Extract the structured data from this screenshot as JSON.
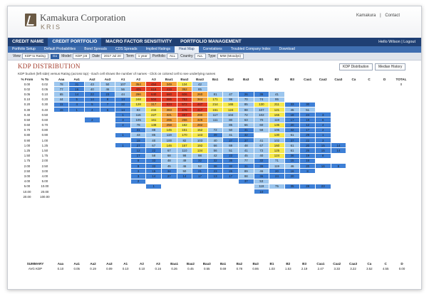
{
  "header": {
    "brand": "Kamakura Corporation",
    "brand_sub": "KRIS",
    "links": [
      "Kamakura",
      "|",
      "Contact"
    ]
  },
  "nav": {
    "items": [
      "CREDIT NAME",
      "CREDIT PORTFOLIO",
      "MACRO FACTOR SENSITIVITY",
      "PORTFOLIO MANAGEMENT"
    ],
    "active": 1,
    "user": "Hello Wilson  |  Logout"
  },
  "subnav": {
    "items": [
      "Portfolio Setup",
      "Default Probabilities",
      "Bond Spreads",
      "CDS Spreads",
      "Implied Ratings",
      "Heat Map",
      "Correlations",
      "Troubled Company Index",
      "Download"
    ],
    "active": 5
  },
  "filters": [
    {
      "label": "View",
      "value": "KDP to Rating"
    },
    {
      "go": "Go"
    },
    {
      "label": "Model",
      "value": "KDP jc6"
    },
    {
      "label": "Date",
      "value": "2017  Jul  20"
    },
    {
      "label": "Term",
      "value": "1 year"
    },
    {
      "label": "Portfolio",
      "value": "ALL"
    },
    {
      "label": "Country",
      "value": "ALL"
    },
    {
      "label": "Type",
      "value": "MIM (Moodys)"
    }
  ],
  "page": {
    "title": "KDP DISTRIBUTION",
    "tabs": [
      "KDP Distribution",
      "Median History"
    ],
    "description": "KDP bucket (left side) versus Rating (across top) - Each cell shows the number of names - Click on colored cell to see underlying names"
  },
  "table": {
    "headers": [
      "% From",
      "% To",
      "Aaa",
      "Aa1",
      "Aa2",
      "Aa3",
      "A1",
      "A2",
      "A3",
      "Baa1",
      "Baa2",
      "Baa3",
      "Ba1",
      "Ba2",
      "Ba3",
      "B1",
      "B2",
      "B3",
      "Caa1",
      "Caa2",
      "Caa3",
      "Ca",
      "C",
      "D",
      "TOTAL"
    ],
    "rows": [
      {
        "from": "0.00",
        "to": "0.02",
        "cells": [
          "78",
          "31",
          "43",
          "50",
          "107",
          "",
          "",
          "",
          "134",
          "42",
          "",
          "",
          "",
          "",
          "",
          "",
          "",
          "",
          "",
          "",
          "",
          "",
          "0",
          "3791"
        ]
      },
      {
        "from": "0.02",
        "to": "0.05",
        "cells": [
          "77",
          "16",
          "40",
          "46",
          "56",
          "",
          "",
          "",
          "",
          "",
          "",
          "",
          "",
          "",
          "",
          "",
          "",
          "",
          "",
          "",
          "",
          "",
          "",
          "5828"
        ]
      },
      {
        "from": "0.05",
        "to": "0.10",
        "cells": [
          "65",
          "14",
          "22",
          "23",
          "44",
          "",
          "",
          "",
          "",
          "",
          "81",
          "47",
          "26",
          "36",
          "41",
          "",
          "",
          "",
          "",
          "",
          "",
          "",
          "",
          "5926"
        ]
      },
      {
        "from": "0.10",
        "to": "0.20",
        "cells": [
          "44",
          "5",
          "14",
          "8",
          "14",
          "",
          "",
          "",
          "",
          "",
          "171",
          "99",
          "70",
          "74",
          "95",
          "",
          "",
          "",
          "",
          "",
          "",
          "",
          "",
          "5825"
        ]
      },
      {
        "from": "0.20",
        "to": "0.30",
        "cells": [
          "11",
          "4",
          "5",
          "7",
          "22",
          "",
          "",
          "",
          "",
          "",
          "214",
          "165",
          "85",
          "130",
          "211",
          "",
          "",
          "",
          "",
          "",
          "",
          "",
          "",
          "3300"
        ]
      },
      {
        "from": "0.30",
        "to": "0.40",
        "cells": [
          "15",
          "1",
          "4",
          "6",
          "14",
          "",
          "",
          "",
          "",
          "",
          "151",
          "124",
          "88",
          "107",
          "121",
          "",
          "",
          "",
          "",
          "",
          "",
          "",
          "",
          "2243"
        ]
      },
      {
        "from": "0.40",
        "to": "0.50",
        "cells": [
          "",
          "",
          "",
          "",
          "",
          "116",
          "227",
          "321",
          "457",
          "",
          "117",
          "104",
          "72",
          "102",
          "165",
          "",
          "",
          "",
          "",
          "",
          "",
          "",
          "",
          "1696"
        ]
      },
      {
        "from": "0.50",
        "to": "0.60",
        "cells": [
          "",
          "",
          "",
          "",
          "",
          "105",
          "161",
          "265",
          "256",
          "",
          "111",
          "80",
          "63",
          "70",
          "119",
          "",
          "",
          "",
          "",
          "",
          "",
          "",
          "",
          "1301"
        ]
      },
      {
        "from": "0.60",
        "to": "0.70",
        "cells": [
          "",
          "",
          "",
          "",
          "",
          "78",
          "138",
          "258",
          "182",
          "",
          "",
          "",
          "",
          "",
          "",
          "",
          "",
          "",
          "",
          "",
          "",
          "",
          "",
          "1019"
        ]
      },
      {
        "from": "0.70",
        "to": "0.80",
        "cells": [
          "",
          "",
          "",
          "",
          "",
          "",
          "",
          "",
          "",
          "",
          "",
          "",
          "",
          "",
          "",
          "",
          "",
          "",
          "",
          "",
          "",
          "",
          "",
          "929"
        ]
      },
      {
        "from": "0.80",
        "to": "0.90",
        "cells": [
          "",
          "",
          "",
          "",
          "",
          "",
          "",
          "",
          "",
          "",
          "",
          "",
          "",
          "",
          "",
          "",
          "",
          "",
          "",
          "",
          "",
          "",
          "",
          "737"
        ]
      },
      {
        "from": "0.90",
        "to": "1.00",
        "cells": [
          "",
          "",
          "",
          "",
          "",
          "",
          "",
          "",
          "",
          "",
          "",
          "",
          "",
          "",
          "",
          "",
          "",
          "",
          "",
          "",
          "",
          "",
          "",
          "607"
        ]
      },
      {
        "from": "1.00",
        "to": "1.25",
        "cells": [
          "",
          "",
          "",
          "",
          "",
          "",
          "",
          "",
          "",
          "",
          "",
          "",
          "",
          "",
          "",
          "",
          "",
          "",
          "",
          "",
          "",
          "",
          "",
          "1217"
        ]
      },
      {
        "from": "1.25",
        "to": "1.50",
        "cells": [
          "",
          "",
          "",
          "",
          "",
          "",
          "",
          "",
          "",
          "",
          "",
          "",
          "",
          "",
          "",
          "",
          "",
          "",
          "",
          "",
          "",
          "",
          "",
          "882"
        ]
      },
      {
        "from": "1.50",
        "to": "1.75",
        "cells": [
          "",
          "",
          "",
          "",
          "",
          "",
          "",
          "",
          "",
          "",
          "",
          "",
          "",
          "",
          "",
          "",
          "",
          "",
          "",
          "",
          "",
          "",
          "",
          "612"
        ]
      },
      {
        "from": "1.75",
        "to": "2.00",
        "cells": [
          "",
          "",
          "",
          "",
          "",
          "",
          "",
          "",
          "",
          "",
          "",
          "",
          "",
          "",
          "",
          "",
          "",
          "",
          "",
          "",
          "",
          "",
          "",
          "480"
        ]
      },
      {
        "from": "2.00",
        "to": "2.50",
        "cells": [
          "",
          "",
          "",
          "",
          "",
          "",
          "",
          "",
          "",
          "",
          "",
          "",
          "",
          "",
          "",
          "",
          "",
          "",
          "",
          "",
          "",
          "",
          "",
          "716"
        ]
      },
      {
        "from": "2.50",
        "to": "3.00",
        "cells": [
          "",
          "",
          "",
          "",
          "",
          "",
          "",
          "",
          "",
          "",
          "",
          "",
          "",
          "",
          "",
          "",
          "",
          "",
          "",
          "",
          "",
          "",
          "",
          "430"
        ]
      },
      {
        "from": "3.00",
        "to": "4.00",
        "cells": [
          "",
          "",
          "",
          "",
          "",
          "",
          "",
          "",
          "",
          "",
          "",
          "",
          "",
          "",
          "",
          "",
          "",
          "",
          "",
          "",
          "",
          "",
          "",
          "310"
        ]
      },
      {
        "from": "4.00",
        "to": "5.00",
        "cells": [
          "",
          "",
          "",
          "",
          "",
          "",
          "",
          "",
          "",
          "",
          "",
          "",
          "",
          "",
          "",
          "",
          "",
          "",
          "",
          "",
          "",
          "",
          "",
          "348"
        ]
      },
      {
        "from": "5.00",
        "to": "10.00",
        "cells": [
          "",
          "",
          "",
          "",
          "",
          "",
          "",
          "",
          "",
          "",
          "",
          "",
          "",
          "",
          "",
          "",
          "",
          "",
          "",
          "",
          "",
          "",
          "",
          "516"
        ]
      },
      {
        "from": "10.00",
        "to": "20.00",
        "cells": [
          "",
          "",
          "",
          "",
          "",
          "",
          "",
          "",
          "",
          "",
          "",
          "",
          "",
          "",
          "",
          "",
          "",
          "",
          "",
          "",
          "",
          "",
          "",
          "133"
        ]
      },
      {
        "from": "20.00",
        "to": "100.00",
        "cells": [
          "",
          "",
          "",
          "",
          "",
          "",
          "",
          "",
          "",
          "",
          "",
          "",
          "",
          "",
          "",
          "",
          "",
          "",
          "",
          "",
          "",
          "",
          "",
          "45"
        ]
      }
    ],
    "colors": {
      "blue": "#3d7fd6",
      "lightblue": "#9cc6ee",
      "paleblue": "#cfe3f5",
      "yellow": "#f5e84a",
      "orange": "#f3a33b",
      "red": "#e23a23",
      "white": "#ffffff"
    }
  },
  "summary": {
    "headers": [
      "SUMMARY",
      "Aaa",
      "Aa1",
      "Aa2",
      "Aa3",
      "A1",
      "A2",
      "A3",
      "Baa1",
      "Baa2",
      "Baa3",
      "Ba1",
      "Ba2",
      "Ba3",
      "B1",
      "B2",
      "B3",
      "Caa1",
      "Caa2",
      "Caa3",
      "Ca",
      "C",
      "D"
    ],
    "row": {
      "label": "AVG KDP",
      "values": [
        "0.10",
        "0.05",
        "0.19",
        "0.09",
        "0.10",
        "0.10",
        "0.16",
        "0.26",
        "0.45",
        "0.55",
        "0.69",
        "0.78",
        "0.86",
        "1.03",
        "1.53",
        "2.19",
        "2.47",
        "3.33",
        "3.22",
        "3.52",
        "4.55",
        "0.00"
      ]
    }
  }
}
